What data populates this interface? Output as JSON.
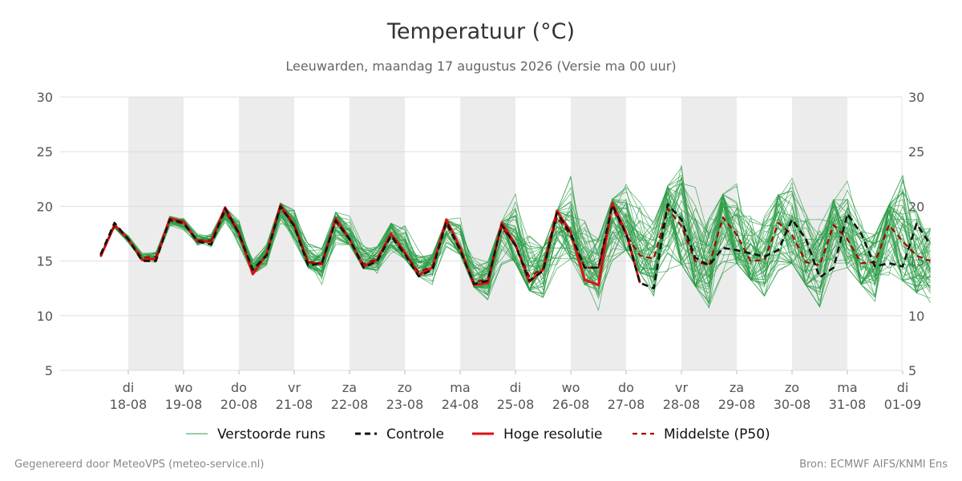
{
  "title": "Temperatuur (°C)",
  "subtitle": "Leeuwarden, maandag 17 augustus 2026 (Versie ma 00 uur)",
  "footer": {
    "left": "Gegenereerd door MeteoVPS (meteo-service.nl)",
    "right": "Bron: ECMWF AIFS/KNMI Ens"
  },
  "colors": {
    "ensemble": "#2e9e48",
    "controle": "#111111",
    "hoge_resolutie": "#dd1111",
    "middelste": "#aa0000",
    "band": "#ececec",
    "grid": "#dddddd"
  },
  "chart_data": {
    "type": "line",
    "ylim": [
      5,
      30
    ],
    "yticks": [
      5,
      10,
      15,
      20,
      25,
      30
    ],
    "x_unit": "days since 2026-08-17 00:00 (3-hourly / 6-hourly steps)",
    "xlim": [
      0.5,
      15.5
    ],
    "xticks": [
      {
        "day": "di",
        "date": "18-08"
      },
      {
        "day": "wo",
        "date": "19-08"
      },
      {
        "day": "do",
        "date": "20-08"
      },
      {
        "day": "vr",
        "date": "21-08"
      },
      {
        "day": "za",
        "date": "22-08"
      },
      {
        "day": "zo",
        "date": "23-08"
      },
      {
        "day": "ma",
        "date": "24-08"
      },
      {
        "day": "di",
        "date": "25-08"
      },
      {
        "day": "wo",
        "date": "26-08"
      },
      {
        "day": "do",
        "date": "27-08"
      },
      {
        "day": "vr",
        "date": "28-08"
      },
      {
        "day": "za",
        "date": "29-08"
      },
      {
        "day": "zo",
        "date": "30-08"
      },
      {
        "day": "ma",
        "date": "31-08"
      },
      {
        "day": "di",
        "date": "01-09"
      }
    ],
    "shaded_days": [
      "18-08",
      "20-08",
      "22-08",
      "24-08",
      "26-08",
      "28-08",
      "30-08"
    ],
    "legend": [
      "Verstoorde runs",
      "Controle",
      "Hoge resolutie",
      "Middelste (P50)"
    ],
    "hoge_resolutie": {
      "name": "Hoge resolutie",
      "points": [
        [
          0.5,
          15.4
        ],
        [
          0.75,
          18.3
        ],
        [
          1.0,
          17.0
        ],
        [
          1.25,
          15.1
        ],
        [
          1.5,
          15.2
        ],
        [
          1.75,
          18.9
        ],
        [
          2.0,
          18.6
        ],
        [
          2.25,
          16.8
        ],
        [
          2.5,
          16.8
        ],
        [
          2.75,
          19.9
        ],
        [
          3.0,
          17.6
        ],
        [
          3.25,
          13.8
        ],
        [
          3.5,
          15.6
        ],
        [
          3.75,
          20.1
        ],
        [
          4.0,
          18.3
        ],
        [
          4.25,
          14.9
        ],
        [
          4.5,
          14.7
        ],
        [
          4.75,
          18.9
        ],
        [
          5.0,
          17.0
        ],
        [
          5.25,
          14.5
        ],
        [
          5.5,
          15.1
        ],
        [
          5.75,
          17.5
        ],
        [
          6.0,
          15.8
        ],
        [
          6.25,
          13.7
        ],
        [
          6.5,
          14.4
        ],
        [
          6.75,
          18.8
        ],
        [
          7.0,
          16.2
        ],
        [
          7.25,
          12.8
        ],
        [
          7.5,
          13.0
        ],
        [
          7.75,
          18.5
        ],
        [
          8.0,
          16.5
        ],
        [
          8.25,
          13.1
        ],
        [
          8.5,
          14.2
        ],
        [
          8.75,
          19.6
        ],
        [
          9.0,
          17.6
        ],
        [
          9.25,
          13.3
        ],
        [
          9.5,
          12.8
        ],
        [
          9.75,
          20.3
        ],
        [
          10.0,
          17.6
        ],
        [
          10.25,
          13.0
        ]
      ]
    },
    "controle": {
      "name": "Controle",
      "points": [
        [
          0.5,
          15.6
        ],
        [
          0.75,
          18.5
        ],
        [
          1.0,
          17.0
        ],
        [
          1.25,
          15.0
        ],
        [
          1.5,
          15.0
        ],
        [
          1.75,
          18.8
        ],
        [
          2.0,
          18.5
        ],
        [
          2.25,
          16.8
        ],
        [
          2.5,
          16.5
        ],
        [
          2.75,
          19.8
        ],
        [
          3.0,
          17.5
        ],
        [
          3.25,
          14.2
        ],
        [
          3.5,
          15.5
        ],
        [
          3.75,
          20.0
        ],
        [
          4.0,
          18.2
        ],
        [
          4.25,
          14.6
        ],
        [
          4.5,
          14.8
        ],
        [
          4.75,
          18.7
        ],
        [
          5.0,
          17.0
        ],
        [
          5.25,
          14.4
        ],
        [
          5.5,
          15.0
        ],
        [
          5.75,
          17.3
        ],
        [
          6.0,
          15.6
        ],
        [
          6.25,
          13.6
        ],
        [
          6.5,
          14.2
        ],
        [
          6.75,
          18.6
        ],
        [
          7.0,
          16.0
        ],
        [
          7.25,
          12.9
        ],
        [
          7.5,
          13.2
        ],
        [
          7.75,
          18.3
        ],
        [
          8.0,
          16.4
        ],
        [
          8.25,
          13.2
        ],
        [
          8.5,
          14.1
        ],
        [
          8.75,
          19.4
        ],
        [
          9.0,
          17.5
        ],
        [
          9.25,
          14.4
        ],
        [
          9.5,
          14.4
        ],
        [
          9.75,
          20.1
        ],
        [
          10.0,
          17.5
        ],
        [
          10.25,
          13.0
        ],
        [
          10.5,
          12.5
        ],
        [
          10.75,
          20.2
        ],
        [
          11.0,
          18.8
        ],
        [
          11.25,
          15.3
        ],
        [
          11.5,
          14.6
        ],
        [
          11.75,
          16.2
        ],
        [
          12.0,
          16.0
        ],
        [
          12.25,
          15.7
        ],
        [
          12.5,
          15.4
        ],
        [
          12.75,
          16.0
        ],
        [
          13.0,
          18.8
        ],
        [
          13.25,
          17.0
        ],
        [
          13.5,
          13.5
        ],
        [
          13.75,
          14.4
        ],
        [
          14.0,
          19.3
        ],
        [
          14.25,
          17.5
        ],
        [
          14.5,
          14.5
        ],
        [
          14.75,
          14.8
        ],
        [
          15.0,
          14.5
        ],
        [
          15.25,
          18.4
        ],
        [
          15.5,
          16.5
        ]
      ]
    },
    "middelste": {
      "name": "Middelste (P50)",
      "points": [
        [
          0.5,
          15.5
        ],
        [
          0.75,
          18.2
        ],
        [
          1.0,
          17.0
        ],
        [
          1.25,
          15.3
        ],
        [
          1.5,
          15.4
        ],
        [
          1.75,
          18.7
        ],
        [
          2.0,
          18.4
        ],
        [
          2.25,
          16.9
        ],
        [
          2.5,
          16.9
        ],
        [
          2.75,
          19.5
        ],
        [
          3.0,
          17.6
        ],
        [
          3.25,
          14.2
        ],
        [
          3.5,
          15.6
        ],
        [
          3.75,
          19.9
        ],
        [
          4.0,
          18.2
        ],
        [
          4.25,
          14.9
        ],
        [
          4.5,
          14.8
        ],
        [
          4.75,
          18.6
        ],
        [
          5.0,
          17.0
        ],
        [
          5.25,
          14.7
        ],
        [
          5.5,
          15.2
        ],
        [
          5.75,
          17.4
        ],
        [
          6.0,
          15.7
        ],
        [
          6.25,
          14.0
        ],
        [
          6.5,
          14.5
        ],
        [
          6.75,
          18.4
        ],
        [
          7.0,
          16.0
        ],
        [
          7.25,
          13.0
        ],
        [
          7.5,
          13.4
        ],
        [
          7.75,
          18.1
        ],
        [
          8.0,
          16.4
        ],
        [
          8.25,
          13.6
        ],
        [
          8.5,
          14.3
        ],
        [
          8.75,
          19.0
        ],
        [
          9.0,
          17.3
        ],
        [
          9.25,
          14.4
        ],
        [
          9.5,
          14.4
        ],
        [
          9.75,
          19.9
        ],
        [
          10.0,
          17.4
        ],
        [
          10.25,
          15.5
        ],
        [
          10.5,
          15.2
        ],
        [
          10.75,
          19.8
        ],
        [
          11.0,
          18.2
        ],
        [
          11.25,
          15.0
        ],
        [
          11.5,
          14.6
        ],
        [
          11.75,
          19.0
        ],
        [
          12.0,
          17.4
        ],
        [
          12.25,
          15.0
        ],
        [
          12.5,
          15.1
        ],
        [
          12.75,
          18.5
        ],
        [
          13.0,
          17.4
        ],
        [
          13.25,
          14.9
        ],
        [
          13.5,
          14.6
        ],
        [
          13.75,
          18.3
        ],
        [
          14.0,
          17.0
        ],
        [
          14.25,
          14.8
        ],
        [
          14.5,
          14.9
        ],
        [
          14.75,
          18.3
        ],
        [
          15.0,
          16.8
        ],
        [
          15.25,
          15.5
        ],
        [
          15.5,
          15.0
        ]
      ]
    },
    "ensemble": {
      "name": "Verstoorde runs",
      "members": 50,
      "spread_points": [
        [
          0.5,
          14.8,
          16.0
        ],
        [
          1.0,
          16.0,
          18.5
        ],
        [
          1.5,
          13.5,
          16.5
        ],
        [
          2.0,
          17.2,
          19.8
        ],
        [
          2.5,
          14.8,
          17.6
        ],
        [
          3.0,
          16.2,
          21.0
        ],
        [
          3.5,
          13.2,
          17.0
        ],
        [
          4.0,
          16.8,
          21.7
        ],
        [
          4.5,
          12.0,
          17.3
        ],
        [
          5.0,
          16.5,
          21.6
        ],
        [
          5.5,
          12.9,
          16.3
        ],
        [
          6.0,
          15.2,
          20.6
        ],
        [
          6.5,
          12.4,
          15.6
        ],
        [
          7.0,
          15.6,
          21.0
        ],
        [
          7.5,
          11.0,
          14.9
        ],
        [
          8.0,
          14.8,
          22.3
        ],
        [
          8.5,
          9.8,
          16.2
        ],
        [
          9.0,
          15.2,
          22.9
        ],
        [
          9.5,
          10.5,
          17.0
        ],
        [
          10.0,
          16.0,
          24.3
        ],
        [
          10.5,
          11.8,
          18.6
        ],
        [
          11.0,
          14.7,
          25.1
        ],
        [
          11.5,
          10.7,
          18.9
        ],
        [
          12.0,
          14.8,
          23.3
        ],
        [
          12.5,
          11.8,
          19.3
        ],
        [
          13.0,
          14.8,
          22.8
        ],
        [
          13.5,
          10.8,
          18.8
        ],
        [
          14.0,
          14.4,
          22.4
        ],
        [
          14.5,
          11.3,
          17.4
        ],
        [
          15.0,
          13.2,
          22.8
        ],
        [
          15.5,
          11.0,
          18.0
        ]
      ]
    }
  }
}
